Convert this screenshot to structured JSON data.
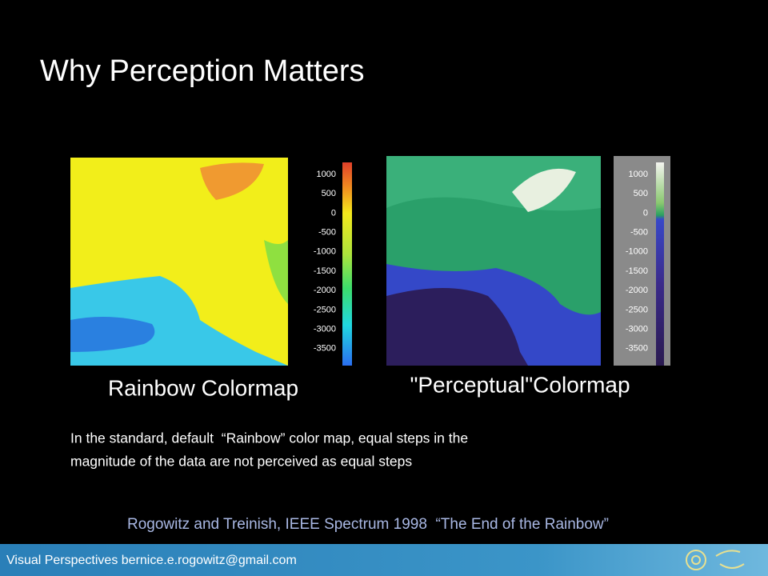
{
  "title": "Why Perception Matters",
  "panels": [
    {
      "caption": "Rainbow Colormap",
      "colorbar_labels": [
        1000,
        500,
        0,
        -500,
        -1000,
        -1500,
        -2000,
        -2500,
        -3000,
        -3500
      ]
    },
    {
      "caption": "\"Perceptual\"Colormap",
      "colorbar_labels": [
        1000,
        500,
        0,
        -500,
        -1000,
        -1500,
        -2000,
        -2500,
        -3000,
        -3500
      ]
    }
  ],
  "body": [
    "In the standard, default  “Rainbow” color map, equal steps in the",
    "magnitude of the data are not perceived as equal steps"
  ],
  "citation": "Rogowitz and Treinish, IEEE Spectrum 1998  “The End of the Rainbow”",
  "footer": "Visual Perspectives bernice.e.rogowitz@gmail.com"
}
